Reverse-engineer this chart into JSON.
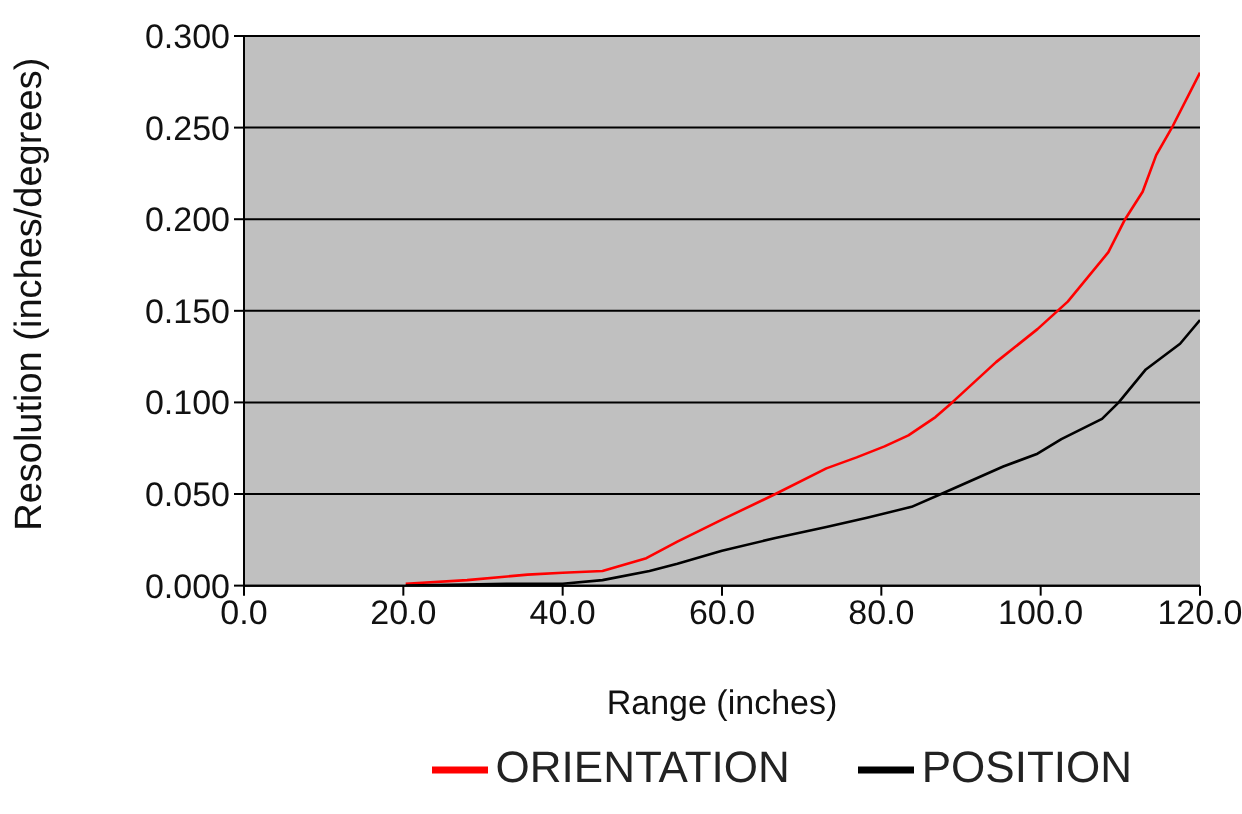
{
  "chart_data": {
    "type": "line",
    "xlabel": "Range (inches)",
    "ylabel": "Resolution (inches/degrees)",
    "xlim": [
      0,
      120
    ],
    "xticks": [
      {
        "value": 0,
        "label": "0.0"
      },
      {
        "value": 20,
        "label": "20.0"
      },
      {
        "value": 40,
        "label": "40.0"
      },
      {
        "value": 60,
        "label": "60.0"
      },
      {
        "value": 80,
        "label": "80.0"
      },
      {
        "value": 100,
        "label": "100.0"
      },
      {
        "value": 120,
        "label": "120.0"
      }
    ],
    "ylim": [
      0,
      0.3
    ],
    "yticks": [
      {
        "value": 0,
        "label": "0.000"
      },
      {
        "value": 0.05,
        "label": "0.050"
      },
      {
        "value": 0.1,
        "label": "0.100"
      },
      {
        "value": 0.15,
        "label": "0.150"
      },
      {
        "value": 0.2,
        "label": "0.200"
      },
      {
        "value": 0.25,
        "label": "0.250"
      },
      {
        "value": 0.3,
        "label": "0.300"
      }
    ],
    "grid": "y",
    "legend": "bottom",
    "marker": "none",
    "line_style": "solid",
    "series": [
      {
        "name": "ORIENTATION",
        "color": "#ff0000",
        "x": [
          20.3,
          28,
          35.6,
          40,
          45,
          50.5,
          54.4,
          60,
          66.7,
          73.1,
          76.9,
          80.4,
          83.4,
          86.8,
          88.9,
          94.4,
          99.6,
          103.4,
          108.5,
          110.6,
          112.8,
          114.5,
          116.6,
          120
        ],
        "values": [
          0.001,
          0.003,
          0.006,
          0.007,
          0.008,
          0.015,
          0.024,
          0.036,
          0.05,
          0.064,
          0.07,
          0.076,
          0.082,
          0.092,
          0.1,
          0.122,
          0.14,
          0.155,
          0.182,
          0.2,
          0.215,
          0.235,
          0.251,
          0.28
        ]
      },
      {
        "name": "POSITION",
        "color": "#000000",
        "x": [
          20.3,
          33,
          40,
          45,
          50.9,
          54.4,
          60,
          66.7,
          73.1,
          78.2,
          83.8,
          88,
          95.3,
          99.6,
          102.6,
          107.7,
          109.8,
          113.2,
          117.5,
          120
        ],
        "values": [
          0,
          0.001,
          0.001,
          0.003,
          0.008,
          0.012,
          0.019,
          0.026,
          0.032,
          0.037,
          0.043,
          0.051,
          0.065,
          0.072,
          0.08,
          0.091,
          0.1,
          0.118,
          0.132,
          0.145
        ]
      }
    ]
  }
}
